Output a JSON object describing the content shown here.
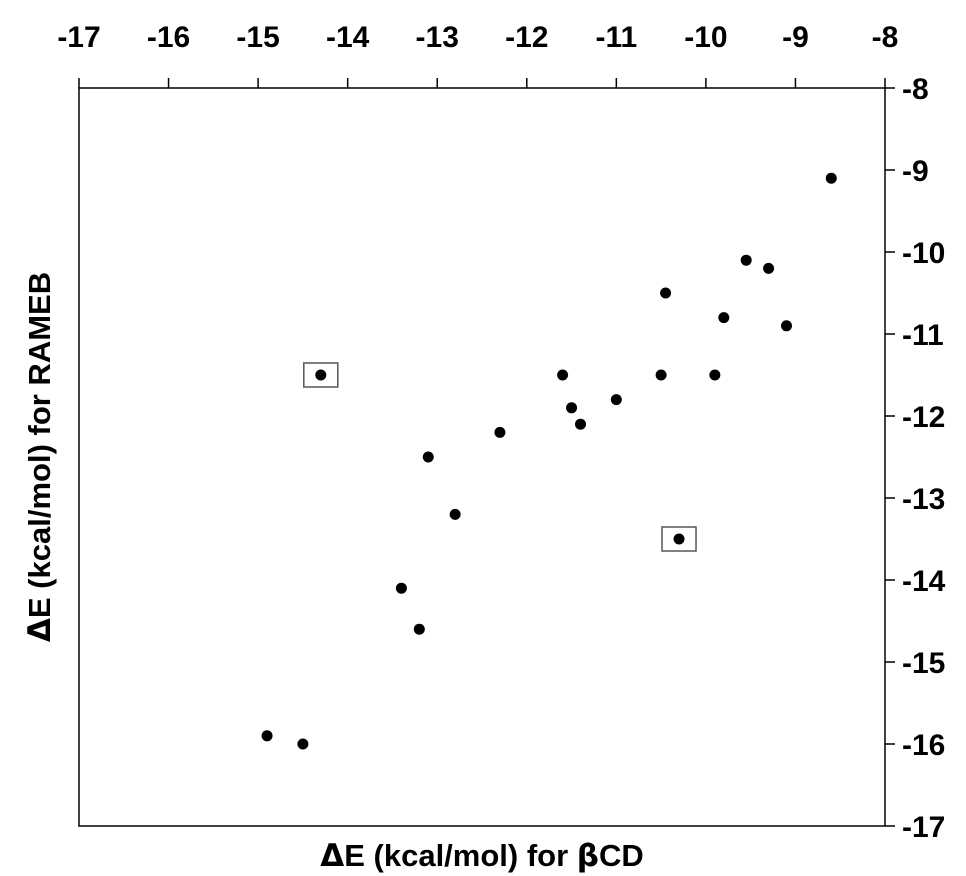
{
  "chart_data": {
    "type": "scatter",
    "title": "",
    "xlabel": {
      "symbol": "Δ",
      "text": "E (kcal/mol) for ",
      "symbol2": "β",
      "text2": "CD"
    },
    "ylabel": {
      "symbol": "Δ",
      "text": "E (kcal/mol) for RAMEB"
    },
    "xlim": [
      -17,
      -8
    ],
    "ylim": [
      -17,
      -8
    ],
    "x_ticks": [
      -17,
      -16,
      -15,
      -14,
      -13,
      -12,
      -11,
      -10,
      -9,
      -8
    ],
    "y_ticks": [
      -8,
      -9,
      -10,
      -11,
      -12,
      -13,
      -14,
      -15,
      -16,
      -17
    ],
    "x_tick_labels": [
      "-17",
      "-16",
      "-15",
      "-14",
      "-13",
      "-12",
      "-11",
      "-10",
      "-9",
      "-8"
    ],
    "y_tick_labels": [
      "-8",
      "-9",
      "-10",
      "-11",
      "-12",
      "-13",
      "-14",
      "-15",
      "-16",
      "-17"
    ],
    "x_axis_position": "top",
    "y_axis_position": "right",
    "grid": false,
    "marker_color": "#000000",
    "points": [
      {
        "x": -8.6,
        "y": -9.1
      },
      {
        "x": -9.55,
        "y": -10.1
      },
      {
        "x": -9.3,
        "y": -10.2
      },
      {
        "x": -10.45,
        "y": -10.5
      },
      {
        "x": -9.8,
        "y": -10.8
      },
      {
        "x": -9.1,
        "y": -10.9
      },
      {
        "x": -14.3,
        "y": -11.5,
        "boxed": true
      },
      {
        "x": -11.6,
        "y": -11.5
      },
      {
        "x": -10.5,
        "y": -11.5
      },
      {
        "x": -9.9,
        "y": -11.5
      },
      {
        "x": -11.0,
        "y": -11.8
      },
      {
        "x": -11.5,
        "y": -11.9
      },
      {
        "x": -11.4,
        "y": -12.1
      },
      {
        "x": -12.3,
        "y": -12.2
      },
      {
        "x": -13.1,
        "y": -12.5
      },
      {
        "x": -12.8,
        "y": -13.2
      },
      {
        "x": -10.3,
        "y": -13.5,
        "boxed": true
      },
      {
        "x": -13.4,
        "y": -14.1
      },
      {
        "x": -13.2,
        "y": -14.6
      },
      {
        "x": -14.9,
        "y": -15.9
      },
      {
        "x": -14.5,
        "y": -16.0
      }
    ]
  }
}
